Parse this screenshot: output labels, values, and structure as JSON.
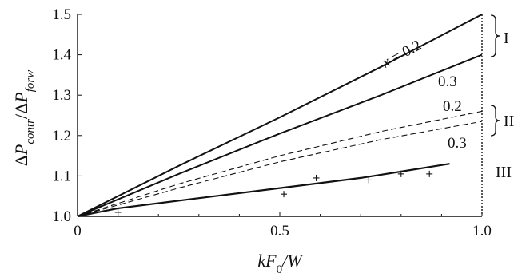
{
  "chart_data": {
    "type": "line",
    "xlabel": "kF₀/W",
    "ylabel": "ΔP_contr/ΔP_forw",
    "xlim": [
      0,
      1.0
    ],
    "ylim": [
      1.0,
      1.5
    ],
    "x_ticks": [
      "0",
      "0.5",
      "1.0"
    ],
    "x_tick_values": [
      0,
      0.5,
      1.0
    ],
    "y_ticks": [
      "1.0",
      "1.1",
      "1.2",
      "1.3",
      "1.4",
      "1.5"
    ],
    "y_tick_values": [
      1.0,
      1.1,
      1.2,
      1.3,
      1.4,
      1.5
    ],
    "series": [
      {
        "label": "x = 0.2",
        "group": "I",
        "style": "solid",
        "x": [
          0,
          0.25,
          0.5,
          0.75,
          1.0
        ],
        "y": [
          1.0,
          1.125,
          1.245,
          1.37,
          1.5
        ]
      },
      {
        "label": "0.3",
        "group": "I",
        "style": "solid",
        "x": [
          0,
          0.25,
          0.5,
          0.75,
          1.0
        ],
        "y": [
          1.0,
          1.105,
          1.205,
          1.3,
          1.4
        ]
      },
      {
        "label": "0.2",
        "group": "II",
        "style": "dashed",
        "x": [
          0,
          0.25,
          0.5,
          0.75,
          1.0
        ],
        "y": [
          1.0,
          1.08,
          1.15,
          1.21,
          1.26
        ]
      },
      {
        "label": "0.3",
        "group": "II",
        "style": "dashed",
        "x": [
          0,
          0.25,
          0.5,
          0.75,
          1.0
        ],
        "y": [
          1.0,
          1.07,
          1.135,
          1.19,
          1.235
        ]
      },
      {
        "label": "",
        "group": "III",
        "style": "solid",
        "x": [
          0,
          0.1,
          0.3,
          0.5,
          0.7,
          0.92
        ],
        "y": [
          1.0,
          1.02,
          1.045,
          1.07,
          1.095,
          1.13
        ]
      }
    ],
    "markers": {
      "x": [
        0.1,
        0.51,
        0.59,
        0.72,
        0.8,
        0.87
      ],
      "y": [
        1.01,
        1.055,
        1.095,
        1.09,
        1.105,
        1.105
      ]
    },
    "group_labels": [
      "I",
      "II",
      "III"
    ]
  }
}
